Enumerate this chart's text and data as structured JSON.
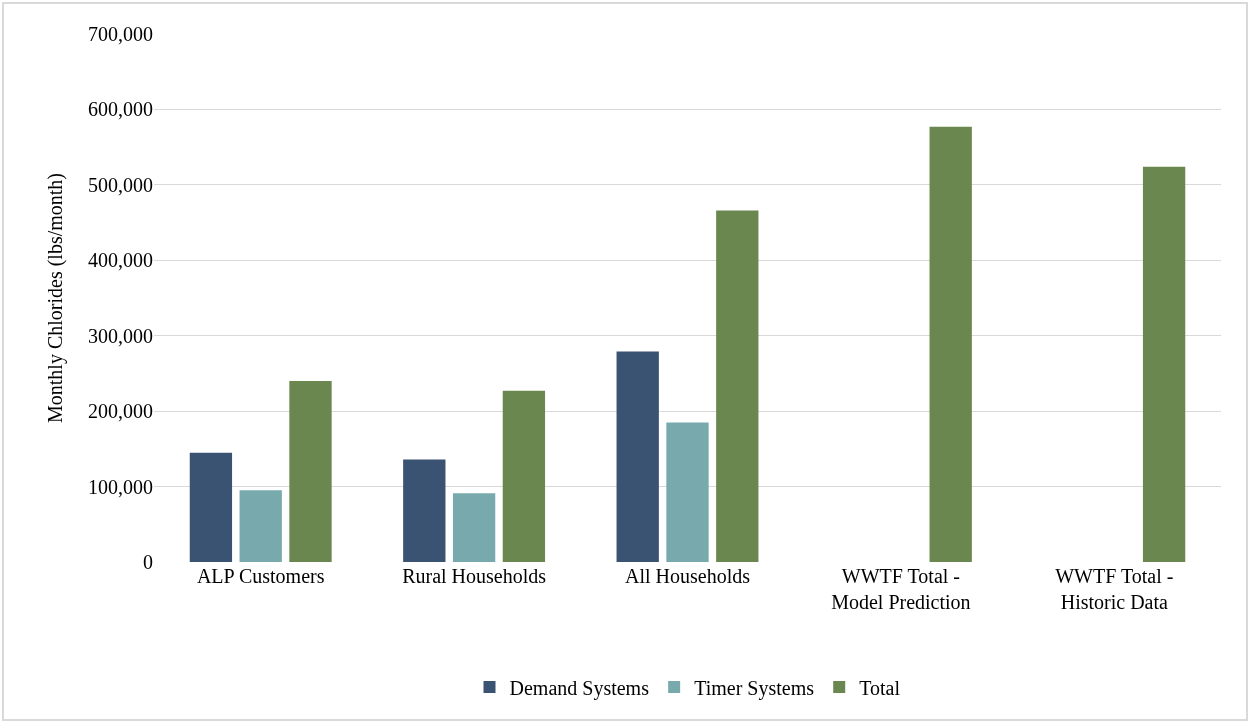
{
  "chart_data": {
    "type": "bar",
    "ylabel": "Monthly Chlorides (lbs/month)",
    "categories": [
      "ALP Customers",
      "Rural Households",
      "All Households",
      "WWTF Total -\nModel Prediction",
      "WWTF Total -\nHistoric Data"
    ],
    "series": [
      {
        "name": "Demand Systems",
        "color": "#3a5373",
        "values": [
          145000,
          136000,
          279000,
          null,
          null
        ]
      },
      {
        "name": "Timer Systems",
        "color": "#78aaad",
        "values": [
          95000,
          91000,
          185000,
          null,
          null
        ]
      },
      {
        "name": "Total",
        "color": "#6a8750",
        "values": [
          240000,
          227000,
          466000,
          577000,
          524000
        ]
      }
    ],
    "ylim": [
      0,
      700000
    ],
    "yticks": [
      {
        "value": 0,
        "label": "0"
      },
      {
        "value": 100000,
        "label": "100,000"
      },
      {
        "value": 200000,
        "label": "200,000"
      },
      {
        "value": 300000,
        "label": "300,000"
      },
      {
        "value": 400000,
        "label": "400,000"
      },
      {
        "value": 500000,
        "label": "500,000"
      },
      {
        "value": 600000,
        "label": "600,000"
      },
      {
        "value": 700000,
        "label": "700,000"
      }
    ],
    "grid": "y",
    "legend": "bottom"
  }
}
